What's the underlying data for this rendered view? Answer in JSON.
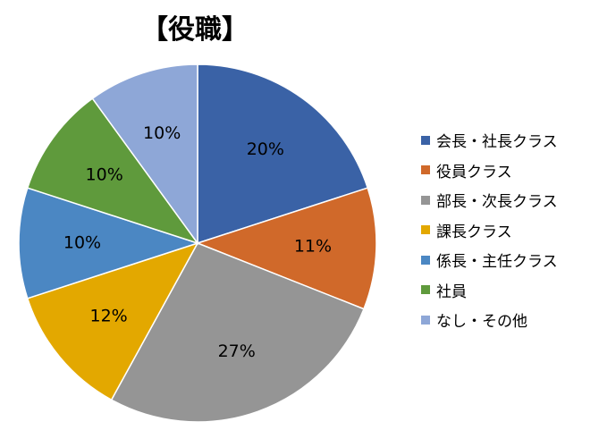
{
  "chart_data": {
    "type": "pie",
    "title": "【役職】",
    "categories": [
      "会長・社長クラス",
      "役員クラス",
      "部長・次長クラス",
      "課長クラス",
      "係長・主任クラス",
      "社員",
      "なし・その他"
    ],
    "values": [
      20,
      11,
      27,
      12,
      10,
      10,
      10
    ],
    "data_labels": [
      "20%",
      "11%",
      "27%",
      "12%",
      "10%",
      "10%",
      "10%"
    ],
    "colors": [
      "#3A62A6",
      "#D0692A",
      "#959595",
      "#E3A800",
      "#4B87C3",
      "#5F9A3C",
      "#8EA7D7"
    ],
    "legend_position": "right",
    "start_angle": "12 o'clock",
    "direction": "clockwise"
  }
}
